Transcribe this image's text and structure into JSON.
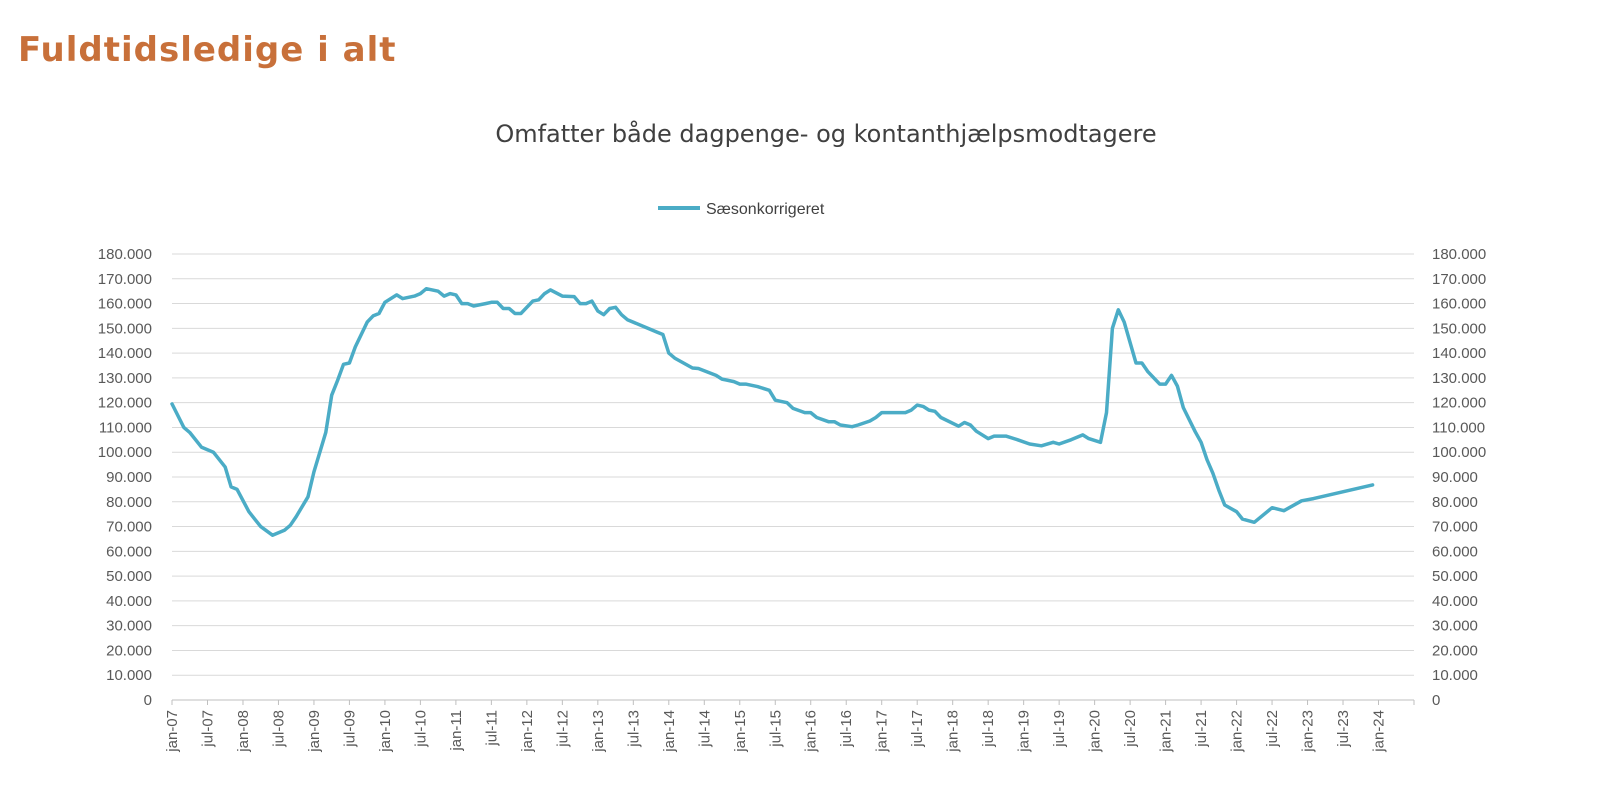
{
  "page_title": "Fuldtidsledige i alt",
  "chart_data": {
    "type": "line",
    "title": "Omfatter både dagpenge- og kontanthjælpsmodtagere",
    "xlabel": "",
    "ylabel": "",
    "legend_position": "top",
    "grid": true,
    "ylim": [
      0,
      180000
    ],
    "y_ticks": [
      "0",
      "10.000",
      "20.000",
      "30.000",
      "40.000",
      "50.000",
      "60.000",
      "70.000",
      "80.000",
      "90.000",
      "100.000",
      "110.000",
      "120.000",
      "130.000",
      "140.000",
      "150.000",
      "160.000",
      "170.000",
      "180.000"
    ],
    "y_ticks_right": [
      "0",
      "10.000",
      "20.000",
      "30.000",
      "40.000",
      "50.000",
      "60.000",
      "70.000",
      "80.000",
      "90.000",
      "100.000",
      "110.000",
      "120.000",
      "130.000",
      "140.000",
      "150.000",
      "160.000",
      "170.000",
      "180.000"
    ],
    "x_ticks": [
      "jan-07",
      "jul-07",
      "jan-08",
      "jul-08",
      "jan-09",
      "jul-09",
      "jan-10",
      "jul-10",
      "jan-11",
      "jul-11",
      "jan-12",
      "jul-12",
      "jan-13",
      "jul-13",
      "jan-14",
      "jul-14",
      "jan-15",
      "jul-15",
      "jan-16",
      "jul-16",
      "jan-17",
      "jul-17",
      "jan-18",
      "jul-18",
      "jan-19",
      "jul-19",
      "jan-20",
      "jul-20",
      "jan-21",
      "jul-21",
      "jan-22",
      "jul-22",
      "jan-23",
      "jul-23",
      "jan-24"
    ],
    "series": [
      {
        "name": "Sæsonkorrigeret",
        "color": "#4BACC6",
        "points": [
          [
            "2007-01",
            119500
          ],
          [
            "2007-03",
            110000
          ],
          [
            "2007-04",
            108000
          ],
          [
            "2007-06",
            102000
          ],
          [
            "2007-08",
            100000
          ],
          [
            "2007-10",
            94000
          ],
          [
            "2007-11",
            86000
          ],
          [
            "2007-12",
            85000
          ],
          [
            "2008-02",
            76000
          ],
          [
            "2008-04",
            70000
          ],
          [
            "2008-06",
            66500
          ],
          [
            "2008-08",
            68500
          ],
          [
            "2008-09",
            70500
          ],
          [
            "2008-10",
            74000
          ],
          [
            "2008-12",
            82000
          ],
          [
            "2009-01",
            92000
          ],
          [
            "2009-03",
            108000
          ],
          [
            "2009-04",
            123000
          ],
          [
            "2009-05",
            129000
          ],
          [
            "2009-06",
            135500
          ],
          [
            "2009-07",
            136000
          ],
          [
            "2009-08",
            142500
          ],
          [
            "2009-10",
            152500
          ],
          [
            "2009-11",
            155000
          ],
          [
            "2009-12",
            156000
          ],
          [
            "2010-01",
            160500
          ],
          [
            "2010-03",
            163500
          ],
          [
            "2010-04",
            162000
          ],
          [
            "2010-06",
            163000
          ],
          [
            "2010-07",
            164000
          ],
          [
            "2010-08",
            166000
          ],
          [
            "2010-10",
            165000
          ],
          [
            "2010-11",
            163000
          ],
          [
            "2010-12",
            164000
          ],
          [
            "2011-01",
            163500
          ],
          [
            "2011-02",
            160000
          ],
          [
            "2011-03",
            160000
          ],
          [
            "2011-04",
            159000
          ],
          [
            "2011-06",
            160000
          ],
          [
            "2011-07",
            160500
          ],
          [
            "2011-08",
            160500
          ],
          [
            "2011-09",
            158000
          ],
          [
            "2011-10",
            158000
          ],
          [
            "2011-11",
            156000
          ],
          [
            "2011-12",
            156000
          ],
          [
            "2012-02",
            161000
          ],
          [
            "2012-03",
            161500
          ],
          [
            "2012-04",
            164000
          ],
          [
            "2012-05",
            165500
          ],
          [
            "2012-07",
            163000
          ],
          [
            "2012-09",
            162800
          ],
          [
            "2012-10",
            160000
          ],
          [
            "2012-11",
            160000
          ],
          [
            "2012-12",
            161000
          ],
          [
            "2013-01",
            157000
          ],
          [
            "2013-02",
            155500
          ],
          [
            "2013-03",
            158000
          ],
          [
            "2013-04",
            158500
          ],
          [
            "2013-05",
            155500
          ],
          [
            "2013-06",
            153500
          ],
          [
            "2013-09",
            150500
          ],
          [
            "2013-11",
            148500
          ],
          [
            "2013-12",
            147500
          ],
          [
            "2014-01",
            140000
          ],
          [
            "2014-02",
            138000
          ],
          [
            "2014-05",
            134000
          ],
          [
            "2014-06",
            133800
          ],
          [
            "2014-09",
            131000
          ],
          [
            "2014-10",
            129500
          ],
          [
            "2014-12",
            128500
          ],
          [
            "2015-01",
            127500
          ],
          [
            "2015-02",
            127500
          ],
          [
            "2015-04",
            126500
          ],
          [
            "2015-06",
            125000
          ],
          [
            "2015-07",
            121000
          ],
          [
            "2015-09",
            120000
          ],
          [
            "2015-10",
            117700
          ],
          [
            "2015-12",
            116000
          ],
          [
            "2016-01",
            116000
          ],
          [
            "2016-02",
            114000
          ],
          [
            "2016-04",
            112300
          ],
          [
            "2016-05",
            112300
          ],
          [
            "2016-06",
            111000
          ],
          [
            "2016-08",
            110300
          ],
          [
            "2016-09",
            111000
          ],
          [
            "2016-11",
            112600
          ],
          [
            "2016-12",
            114000
          ],
          [
            "2017-01",
            116000
          ],
          [
            "2017-05",
            116000
          ],
          [
            "2017-06",
            117000
          ],
          [
            "2017-07",
            119000
          ],
          [
            "2017-08",
            118500
          ],
          [
            "2017-09",
            117000
          ],
          [
            "2017-10",
            116500
          ],
          [
            "2017-11",
            114000
          ],
          [
            "2018-02",
            110500
          ],
          [
            "2018-03",
            112000
          ],
          [
            "2018-04",
            111000
          ],
          [
            "2018-05",
            108500
          ],
          [
            "2018-07",
            105500
          ],
          [
            "2018-08",
            106500
          ],
          [
            "2018-10",
            106500
          ],
          [
            "2018-12",
            105000
          ],
          [
            "2019-02",
            103300
          ],
          [
            "2019-04",
            102600
          ],
          [
            "2019-06",
            104000
          ],
          [
            "2019-07",
            103300
          ],
          [
            "2019-09",
            105000
          ],
          [
            "2019-11",
            107000
          ],
          [
            "2019-12",
            105500
          ],
          [
            "2020-02",
            104000
          ],
          [
            "2020-03",
            116000
          ],
          [
            "2020-04",
            150000
          ],
          [
            "2020-05",
            157500
          ],
          [
            "2020-06",
            152500
          ],
          [
            "2020-08",
            136000
          ],
          [
            "2020-09",
            136000
          ],
          [
            "2020-10",
            132500
          ],
          [
            "2020-12",
            127500
          ],
          [
            "2021-01",
            127500
          ],
          [
            "2021-02",
            131000
          ],
          [
            "2021-03",
            126700
          ],
          [
            "2021-04",
            118000
          ],
          [
            "2021-06",
            108300
          ],
          [
            "2021-07",
            104000
          ],
          [
            "2021-08",
            97000
          ],
          [
            "2021-09",
            91500
          ],
          [
            "2021-10",
            84700
          ],
          [
            "2021-11",
            78700
          ],
          [
            "2022-01",
            76000
          ],
          [
            "2022-02",
            73000
          ],
          [
            "2022-04",
            71700
          ],
          [
            "2022-07",
            77600
          ],
          [
            "2022-09",
            76400
          ],
          [
            "2022-12",
            80400
          ],
          [
            "2023-02",
            81300
          ],
          [
            "2023-12",
            86800
          ]
        ]
      }
    ]
  }
}
